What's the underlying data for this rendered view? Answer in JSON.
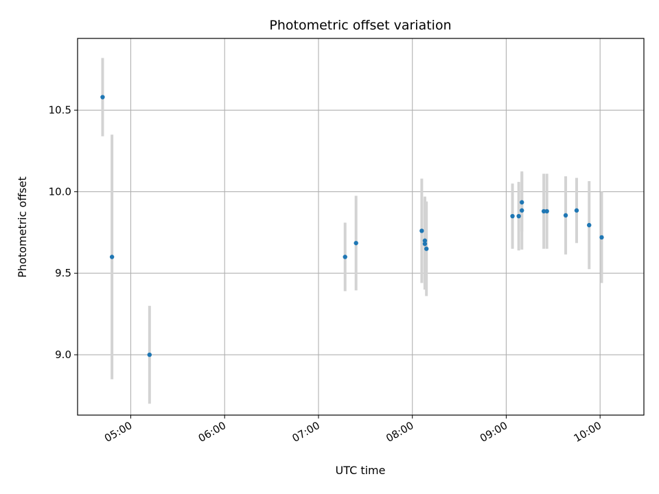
{
  "chart_data": {
    "type": "scatter",
    "title": "Photometric offset variation",
    "xlabel": "UTC time",
    "ylabel": "Photometric offset",
    "x_format": "HH:MM",
    "xlim": [
      "04:26",
      "10:28"
    ],
    "ylim": [
      8.63,
      10.94
    ],
    "x_ticks": [
      "05:00",
      "06:00",
      "07:00",
      "08:00",
      "09:00",
      "10:00"
    ],
    "y_ticks": [
      9.0,
      9.5,
      10.0,
      10.5
    ],
    "y_tick_labels": [
      "9.0",
      "9.5",
      "10.0",
      "10.5"
    ],
    "grid": true,
    "point_color": "#1f77b4",
    "errorbar_color": "#d3d3d3",
    "series": [
      {
        "points": [
          {
            "x": "04:42",
            "y": 10.58,
            "err": 0.24
          },
          {
            "x": "04:48",
            "y": 9.6,
            "err": 0.75
          },
          {
            "x": "05:12",
            "y": 9.0,
            "err": 0.3
          },
          {
            "x": "07:17",
            "y": 9.6,
            "err": 0.21
          },
          {
            "x": "07:24",
            "y": 9.685,
            "err": 0.29
          },
          {
            "x": "08:06",
            "y": 9.76,
            "err": 0.32
          },
          {
            "x": "08:08",
            "y": 9.7,
            "err": 0.27
          },
          {
            "x": "08:08",
            "y": 9.68,
            "err": 0.28
          },
          {
            "x": "08:09",
            "y": 9.65,
            "err": 0.29
          },
          {
            "x": "09:04",
            "y": 9.85,
            "err": 0.2
          },
          {
            "x": "09:08",
            "y": 9.85,
            "err": 0.21
          },
          {
            "x": "09:10",
            "y": 9.935,
            "err": 0.18
          },
          {
            "x": "09:10",
            "y": 9.885,
            "err": 0.24
          },
          {
            "x": "09:24",
            "y": 9.88,
            "err": 0.23
          },
          {
            "x": "09:26",
            "y": 9.88,
            "err": 0.23
          },
          {
            "x": "09:38",
            "y": 9.855,
            "err": 0.24
          },
          {
            "x": "09:45",
            "y": 9.885,
            "err": 0.2
          },
          {
            "x": "09:53",
            "y": 9.795,
            "err": 0.27
          },
          {
            "x": "10:01",
            "y": 9.72,
            "err": 0.28
          }
        ]
      }
    ]
  }
}
